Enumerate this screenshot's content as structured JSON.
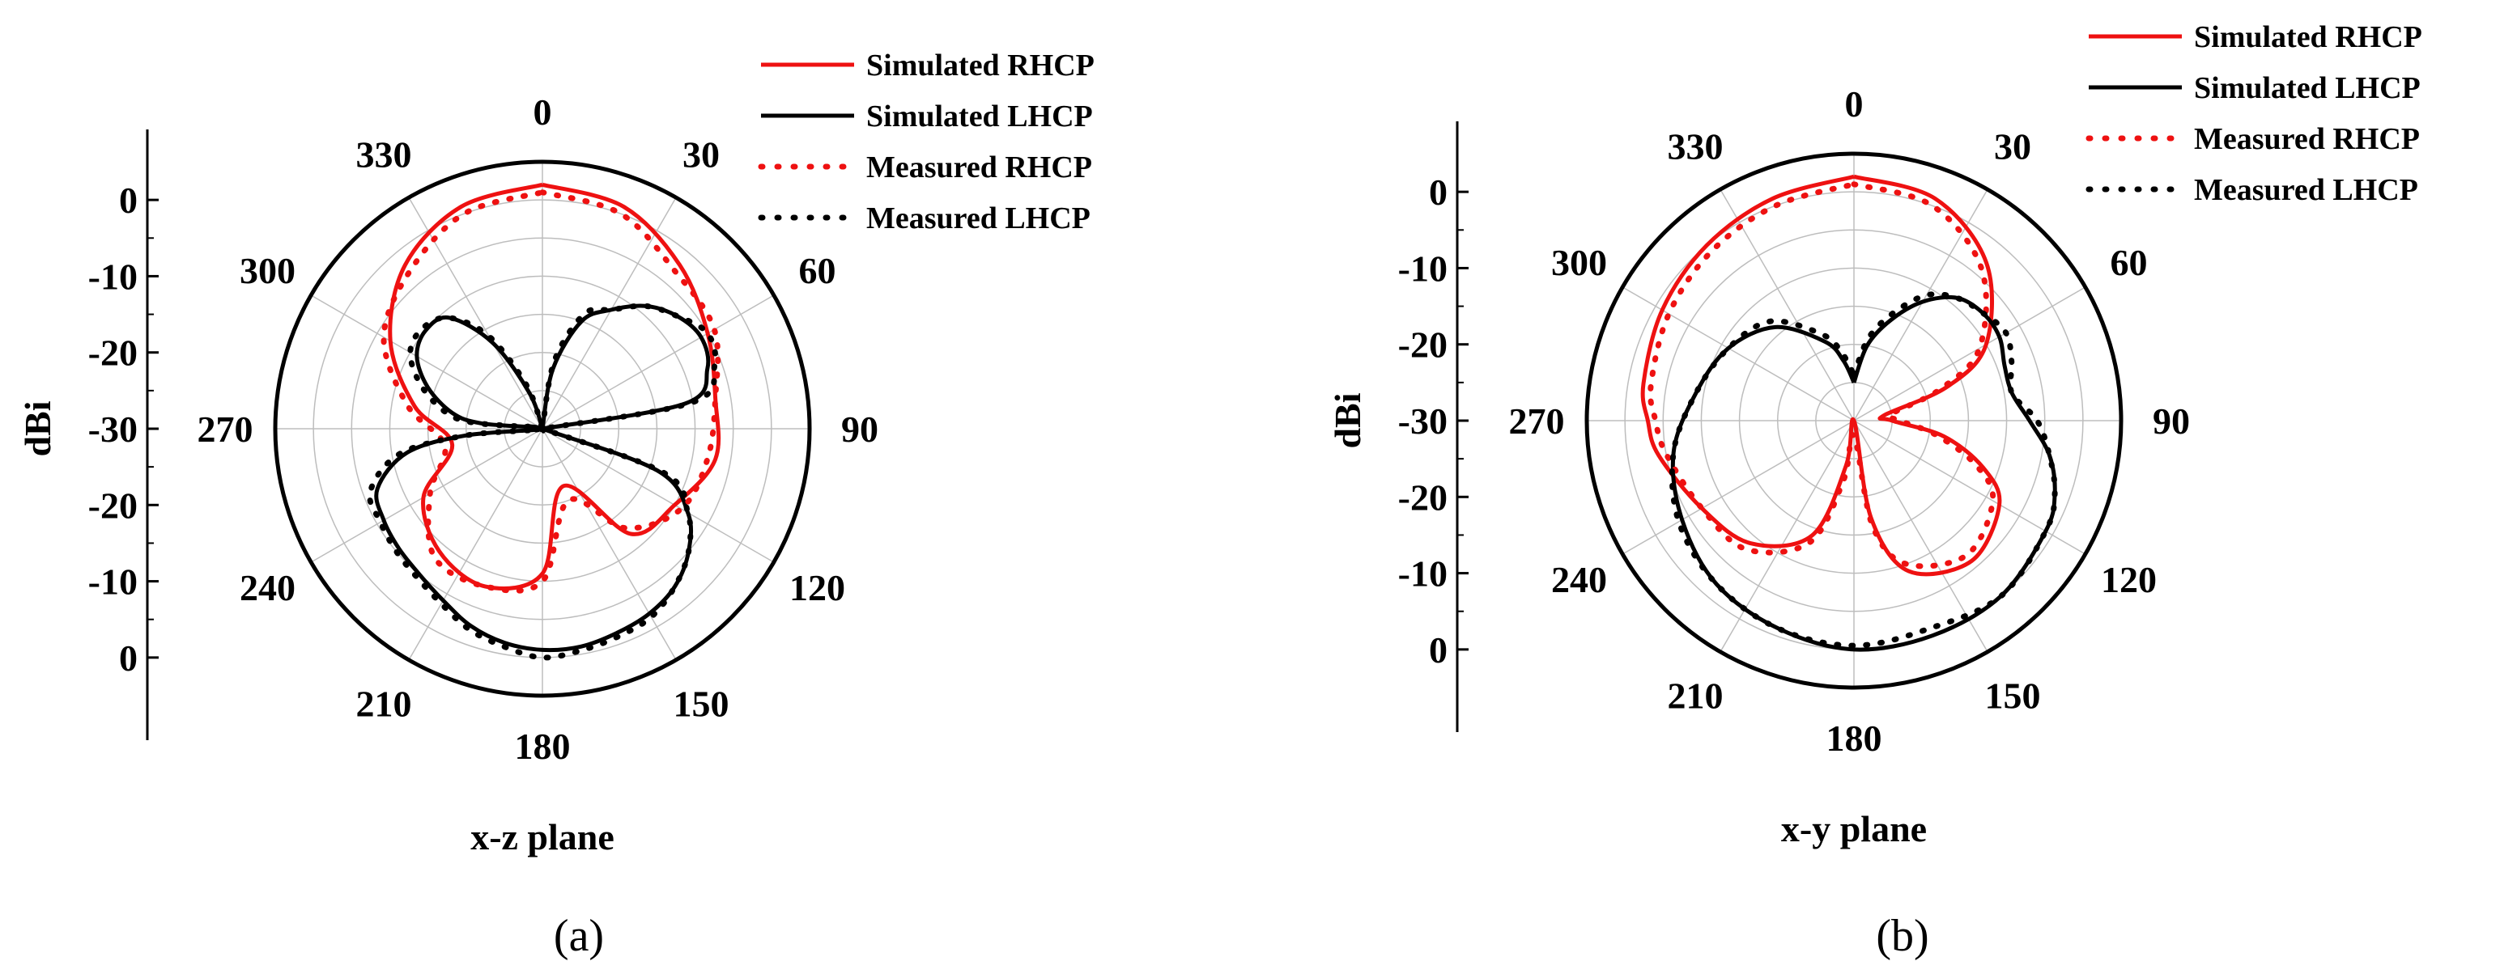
{
  "chart_data": [
    {
      "type": "polar",
      "panel_label": "(a)",
      "plane_label": "x-z plane",
      "radial_axis": {
        "label": "dBi",
        "range_dBi": [
          -30,
          5
        ],
        "ticks_upper": [
          "0",
          "-10",
          "-20",
          "-30"
        ],
        "ticks_lower": [
          "-20",
          "-10",
          "0"
        ]
      },
      "angle_ticks": [
        "0",
        "30",
        "60",
        "90",
        "120",
        "150",
        "180",
        "210",
        "240",
        "270",
        "300",
        "330"
      ],
      "series": [
        {
          "name": "Simulated RHCP",
          "color": "#ee1111",
          "style": "solid",
          "angles": [
            0,
            20,
            40,
            60,
            80,
            100,
            120,
            140,
            160,
            180,
            200,
            220,
            240,
            260,
            280,
            300,
            320,
            340,
            360
          ],
          "values": [
            2,
            1,
            -2,
            -5,
            -7,
            -7,
            -10,
            -12,
            -22,
            -11,
            -8,
            -9,
            -12,
            -18,
            -13,
            -7,
            -2,
            1,
            2
          ]
        },
        {
          "name": "Simulated LHCP",
          "color": "#000000",
          "style": "solid",
          "angles": [
            0,
            10,
            20,
            30,
            40,
            50,
            60,
            70,
            80,
            90,
            100,
            110,
            120,
            130,
            140,
            150,
            160,
            170,
            180,
            190,
            200,
            210,
            220,
            230,
            240,
            250,
            260,
            265,
            270,
            275,
            280,
            290,
            300,
            310,
            320,
            330,
            340,
            350,
            360
          ],
          "values": [
            -30,
            -22,
            -15,
            -12,
            -9,
            -7,
            -6,
            -7,
            -11,
            -30,
            -30,
            -14,
            -8,
            -5,
            -3,
            -2,
            -1.5,
            -1,
            -1,
            -1.5,
            -2.5,
            -4,
            -5,
            -5.5,
            -6,
            -7,
            -12,
            -20,
            -30,
            -22,
            -18,
            -14,
            -11,
            -10,
            -11,
            -17,
            -25,
            -30,
            -30
          ]
        },
        {
          "name": "Measured RHCP",
          "color": "#ee1111",
          "style": "dotted",
          "angles": [
            0,
            20,
            40,
            60,
            80,
            100,
            120,
            140,
            160,
            180,
            200,
            220,
            240,
            260,
            280,
            300,
            320,
            340,
            360
          ],
          "values": [
            1,
            0,
            -3,
            -4,
            -7,
            -8,
            -9,
            -13,
            -20,
            -10,
            -8,
            -8,
            -13,
            -17,
            -12,
            -6,
            -3,
            0,
            1
          ]
        },
        {
          "name": "Measured LHCP",
          "color": "#000000",
          "style": "dotted",
          "angles": [
            0,
            10,
            20,
            30,
            40,
            50,
            60,
            70,
            80,
            90,
            100,
            110,
            120,
            130,
            140,
            150,
            160,
            170,
            180,
            190,
            200,
            210,
            220,
            230,
            240,
            250,
            260,
            265,
            270,
            275,
            280,
            290,
            300,
            310,
            320,
            330,
            340,
            350,
            360
          ],
          "values": [
            -30,
            -21,
            -14,
            -12,
            -9,
            -7,
            -5,
            -6,
            -10,
            -30,
            -30,
            -13,
            -8,
            -5,
            -3,
            -1.5,
            -1,
            -0.5,
            0,
            -1,
            -2,
            -3.5,
            -4.5,
            -5,
            -5.5,
            -6,
            -11,
            -20,
            -30,
            -21,
            -17,
            -13,
            -10,
            -9.5,
            -11,
            -16,
            -24,
            -30,
            -30
          ]
        }
      ]
    },
    {
      "type": "polar",
      "panel_label": "(b)",
      "plane_label": "x-y plane",
      "radial_axis": {
        "label": "dBi",
        "range_dBi": [
          -30,
          5
        ],
        "ticks_upper": [
          "0",
          "-10",
          "-20",
          "-30"
        ],
        "ticks_lower": [
          "-20",
          "-10",
          "0"
        ]
      },
      "angle_ticks": [
        "0",
        "30",
        "60",
        "90",
        "120",
        "150",
        "180",
        "210",
        "240",
        "270",
        "300",
        "330"
      ],
      "series": [
        {
          "name": "Simulated RHCP",
          "color": "#ee1111",
          "style": "solid",
          "angles": [
            0,
            20,
            40,
            60,
            70,
            80,
            90,
            100,
            110,
            120,
            140,
            160,
            170,
            180,
            190,
            200,
            220,
            240,
            260,
            270,
            280,
            300,
            320,
            340,
            360
          ],
          "values": [
            2,
            1,
            -3,
            -10,
            -17,
            -26,
            -25,
            -18,
            -12,
            -8,
            -6,
            -9,
            -17,
            -30,
            -24,
            -14,
            -9,
            -7,
            -4,
            -3,
            -2,
            -1,
            0,
            1,
            2
          ]
        },
        {
          "name": "Simulated LHCP",
          "color": "#000000",
          "style": "solid",
          "angles": [
            0,
            10,
            20,
            30,
            40,
            50,
            60,
            70,
            80,
            90,
            100,
            110,
            120,
            140,
            160,
            180,
            200,
            220,
            240,
            260,
            280,
            300,
            320,
            340,
            350,
            360
          ],
          "values": [
            -25,
            -20,
            -16,
            -12,
            -9,
            -8,
            -8,
            -9,
            -9,
            -7,
            -4,
            -2,
            -1,
            0,
            0,
            0,
            -1,
            -2,
            -4,
            -6,
            -9,
            -11,
            -14,
            -19,
            -22,
            -25
          ]
        },
        {
          "name": "Measured RHCP",
          "color": "#ee1111",
          "style": "dotted",
          "angles": [
            0,
            20,
            40,
            60,
            70,
            80,
            90,
            100,
            110,
            120,
            140,
            160,
            170,
            180,
            190,
            200,
            220,
            240,
            260,
            270,
            280,
            300,
            320,
            340,
            360
          ],
          "values": [
            1,
            0,
            -4,
            -11,
            -18,
            -25,
            -24,
            -19,
            -13,
            -9,
            -7,
            -10,
            -16,
            -28,
            -22,
            -13,
            -8,
            -7,
            -5,
            -4,
            -3,
            -2,
            -1,
            0,
            1
          ]
        },
        {
          "name": "Measured LHCP",
          "color": "#000000",
          "style": "dotted",
          "angles": [
            0,
            10,
            20,
            30,
            40,
            50,
            60,
            70,
            80,
            90,
            100,
            110,
            120,
            140,
            160,
            180,
            200,
            220,
            240,
            260,
            280,
            300,
            320,
            340,
            350,
            360
          ],
          "values": [
            -24,
            -19,
            -15,
            -11,
            -9,
            -8,
            -7,
            -8,
            -9,
            -6,
            -4,
            -2,
            -1,
            0,
            -1,
            -0.5,
            -1,
            -2,
            -3.5,
            -6,
            -9,
            -11,
            -13,
            -18,
            -21,
            -24
          ]
        }
      ]
    }
  ]
}
